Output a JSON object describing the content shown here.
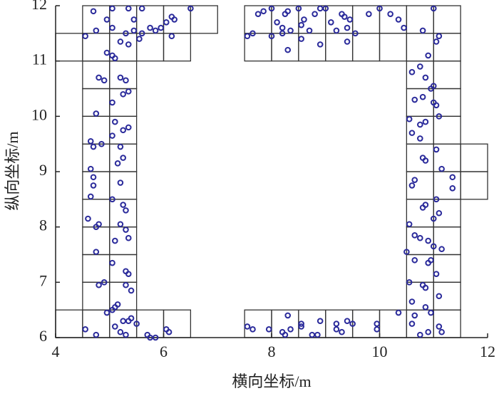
{
  "chart_data": {
    "type": "scatter",
    "xlabel": "横向坐标/m",
    "ylabel": "纵向坐标/m",
    "xlim": [
      4,
      12
    ],
    "ylim": [
      6,
      12
    ],
    "xticks": [
      4,
      6,
      8,
      10,
      12
    ],
    "yticks": [
      6,
      7,
      8,
      9,
      10,
      11,
      12
    ],
    "cell_size": 0.5,
    "cell_color": "#333333",
    "cells": [
      [
        4.5,
        11.5
      ],
      [
        5,
        11.5
      ],
      [
        5.5,
        11.5
      ],
      [
        6,
        11.5
      ],
      [
        6.5,
        11.5
      ],
      [
        7.5,
        11.5
      ],
      [
        8,
        11.5
      ],
      [
        8.5,
        11.5
      ],
      [
        9,
        11.5
      ],
      [
        9.5,
        11.5
      ],
      [
        10,
        11.5
      ],
      [
        10.5,
        11.5
      ],
      [
        11,
        11.5
      ],
      [
        4,
        11
      ],
      [
        4.5,
        11
      ],
      [
        5,
        11
      ],
      [
        5.5,
        11
      ],
      [
        6,
        11
      ],
      [
        7.5,
        11
      ],
      [
        8,
        11
      ],
      [
        8.5,
        11
      ],
      [
        9,
        11
      ],
      [
        9.5,
        11
      ],
      [
        10,
        11
      ],
      [
        10.5,
        11
      ],
      [
        11,
        11
      ],
      [
        4.5,
        10.5
      ],
      [
        5,
        10.5
      ],
      [
        10.5,
        10.5
      ],
      [
        11,
        10.5
      ],
      [
        4.5,
        10
      ],
      [
        5,
        10
      ],
      [
        10.5,
        10
      ],
      [
        11,
        10
      ],
      [
        4.5,
        9.5
      ],
      [
        5,
        9.5
      ],
      [
        10.5,
        9.5
      ],
      [
        11,
        9.5
      ],
      [
        4.5,
        9
      ],
      [
        5,
        9
      ],
      [
        10.5,
        9
      ],
      [
        11,
        9
      ],
      [
        11.5,
        9
      ],
      [
        4.5,
        8.5
      ],
      [
        5,
        8.5
      ],
      [
        10.5,
        8.5
      ],
      [
        11,
        8.5
      ],
      [
        11.5,
        8.5
      ],
      [
        4.5,
        8
      ],
      [
        5,
        8
      ],
      [
        10.5,
        8
      ],
      [
        11,
        8
      ],
      [
        4.5,
        7.5
      ],
      [
        5,
        7.5
      ],
      [
        10.5,
        7.5
      ],
      [
        11,
        7.5
      ],
      [
        4.5,
        7
      ],
      [
        5,
        7
      ],
      [
        10.5,
        7
      ],
      [
        11,
        7
      ],
      [
        4.5,
        6.5
      ],
      [
        5,
        6.5
      ],
      [
        10.5,
        6.5
      ],
      [
        11,
        6.5
      ],
      [
        4,
        6
      ],
      [
        4.5,
        6
      ],
      [
        5,
        6
      ],
      [
        5.5,
        6
      ],
      [
        6,
        6
      ],
      [
        7.5,
        6
      ],
      [
        8,
        6
      ],
      [
        8.5,
        6
      ],
      [
        9,
        6
      ],
      [
        9.5,
        6
      ],
      [
        10,
        6
      ],
      [
        10.5,
        6
      ],
      [
        11,
        6
      ]
    ],
    "series": [
      {
        "color": "#2b2b9b",
        "x": [
          4.55,
          4.7,
          4.75,
          4.95,
          5.05,
          5.05,
          4.95,
          5.05,
          5.1,
          5.2,
          5.3,
          5.35,
          5.45,
          5.45,
          5.55,
          5.6,
          5.35,
          5.6,
          5.75,
          5.85,
          5.95,
          6.05,
          6.15,
          6.2,
          6.15,
          6.5,
          4.8,
          4.9,
          5.2,
          5.3,
          5.25,
          5.35,
          5.05,
          4.75,
          5.1,
          5.25,
          5.35,
          5.05,
          4.7,
          4.65,
          4.85,
          5.2,
          5.25,
          5.15,
          4.65,
          4.7,
          4.7,
          5.2,
          4.65,
          5.05,
          5.25,
          5.3,
          4.6,
          4.75,
          4.8,
          5.2,
          5.3,
          5.1,
          5.35,
          4.75,
          5.05,
          5.3,
          5.35,
          4.8,
          4.9,
          5.3,
          5.4,
          5.05,
          5.1,
          4.95,
          5.15,
          5.25,
          5.35,
          5.4,
          5.5,
          5.1,
          5.2,
          5.3,
          4.55,
          4.75,
          5.7,
          5.75,
          5.85,
          6.05,
          6.1,
          7.55,
          7.65,
          7.75,
          7.85,
          8.0,
          8.1,
          8.2,
          8.25,
          8.3,
          8.35,
          8.3,
          8.5,
          8.55,
          8.6,
          8.7,
          8.8,
          8.9,
          9.0,
          9.1,
          9.2,
          9.3,
          9.35,
          9.45,
          9.55,
          9.4,
          9.8,
          10.0,
          10.2,
          10.35,
          10.45,
          10.8,
          11.0,
          11.1,
          11.05,
          8.55,
          8.9,
          8.0,
          8.2,
          9.4,
          10.9,
          10.75,
          10.6,
          10.85,
          10.95,
          11.0,
          10.65,
          10.8,
          11.0,
          11.05,
          10.55,
          10.75,
          10.85,
          11.1,
          10.6,
          10.75,
          11.05,
          10.8,
          10.85,
          11.15,
          10.65,
          10.6,
          11.35,
          11.35,
          10.85,
          10.8,
          11.05,
          11.1,
          10.55,
          11.0,
          10.65,
          10.75,
          10.9,
          11.0,
          11.15,
          10.5,
          10.65,
          10.9,
          10.95,
          11.05,
          10.55,
          10.8,
          10.85,
          11.1,
          10.6,
          10.85,
          10.95,
          7.55,
          7.65,
          7.95,
          8.2,
          8.25,
          8.3,
          8.35,
          8.55,
          8.55,
          8.75,
          8.9,
          8.85,
          9.2,
          9.2,
          9.3,
          9.4,
          9.5,
          9.95,
          9.95,
          10.35,
          10.65,
          10.6,
          10.75,
          10.9,
          11.1,
          11.15
        ],
        "values": [
          11.45,
          11.9,
          11.55,
          11.75,
          11.95,
          11.6,
          11.15,
          11.1,
          11.05,
          11.35,
          11.5,
          11.3,
          11.55,
          11.75,
          11.4,
          11.5,
          11.95,
          11.95,
          11.6,
          11.55,
          11.6,
          11.7,
          11.8,
          11.75,
          11.45,
          11.95,
          10.7,
          10.65,
          10.7,
          10.65,
          10.4,
          10.45,
          10.25,
          10.05,
          9.9,
          9.75,
          9.8,
          9.65,
          9.45,
          9.55,
          9.5,
          9.45,
          9.25,
          9.15,
          9.05,
          8.9,
          8.75,
          8.8,
          8.55,
          8.5,
          8.4,
          8.3,
          8.15,
          8.0,
          8.05,
          8.05,
          7.95,
          7.75,
          7.8,
          7.55,
          7.35,
          7.2,
          7.15,
          6.95,
          7.0,
          6.95,
          6.85,
          6.5,
          6.55,
          6.45,
          6.6,
          6.3,
          6.3,
          6.35,
          6.25,
          6.2,
          6.1,
          6.05,
          6.15,
          6.05,
          6.05,
          6.0,
          6.0,
          6.15,
          6.1,
          11.45,
          11.5,
          11.85,
          11.9,
          11.95,
          11.7,
          11.6,
          11.85,
          11.9,
          11.55,
          11.2,
          11.95,
          11.65,
          11.75,
          11.55,
          11.85,
          11.95,
          11.95,
          11.7,
          11.55,
          11.85,
          11.8,
          11.75,
          11.5,
          11.35,
          11.85,
          11.95,
          11.85,
          11.75,
          11.6,
          11.55,
          11.95,
          11.45,
          11.35,
          11.4,
          11.3,
          11.45,
          11.5,
          11.6,
          11.1,
          10.9,
          10.8,
          10.7,
          10.5,
          10.55,
          10.3,
          10.35,
          10.25,
          10.2,
          9.95,
          9.85,
          9.9,
          10.0,
          9.7,
          9.6,
          9.4,
          9.25,
          9.2,
          9.05,
          8.85,
          8.75,
          8.9,
          8.7,
          8.4,
          8.35,
          8.5,
          8.25,
          8.05,
          8.15,
          7.85,
          7.8,
          7.75,
          7.65,
          7.6,
          7.55,
          7.4,
          7.35,
          7.4,
          7.15,
          7.0,
          6.95,
          6.9,
          6.75,
          6.65,
          6.55,
          6.45,
          6.2,
          6.15,
          6.15,
          6.1,
          6.05,
          6.4,
          6.15,
          6.2,
          6.25,
          6.05,
          6.3,
          6.05,
          6.25,
          6.15,
          6.1,
          6.3,
          6.25,
          6.25,
          6.15,
          6.45,
          6.4,
          6.25,
          6.05,
          6.1,
          6.2,
          6.1
        ]
      }
    ]
  }
}
